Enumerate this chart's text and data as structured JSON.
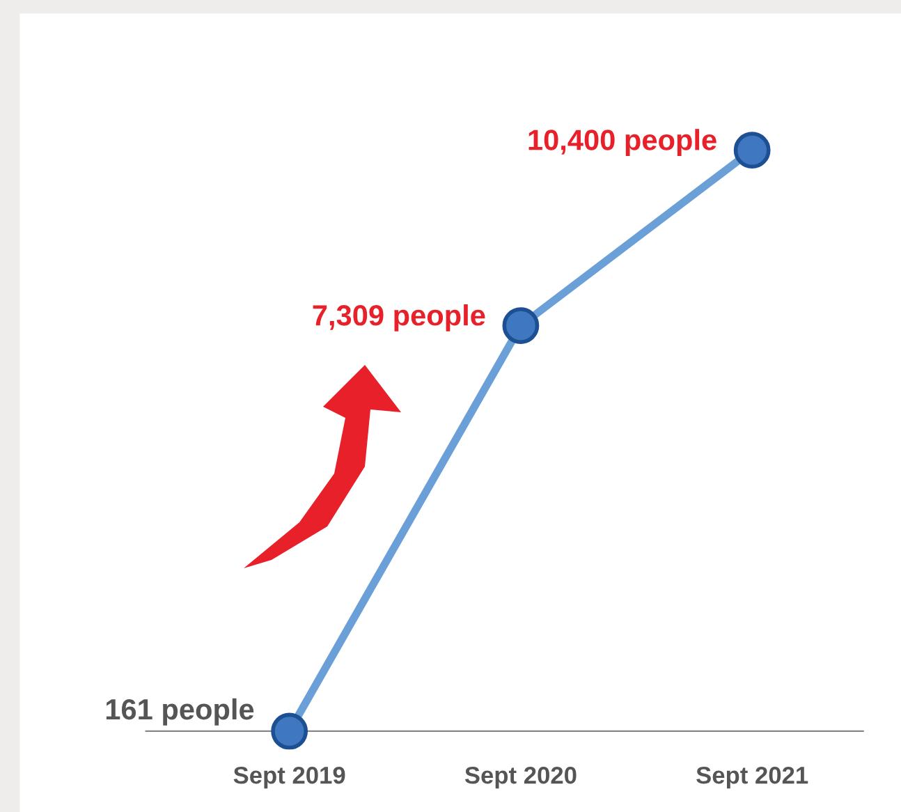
{
  "chart_data": {
    "type": "line",
    "categories": [
      "Sept 2019",
      "Sept 2020",
      "Sept 2021"
    ],
    "series": [
      {
        "color": "#6a9fd8",
        "values": [
          161,
          7309,
          10400
        ],
        "value_labels": [
          "161 people",
          "7,309 people",
          "10,400 people"
        ]
      }
    ],
    "marker": "circle",
    "line_style": "solid",
    "grid": false,
    "legend": false
  }
}
